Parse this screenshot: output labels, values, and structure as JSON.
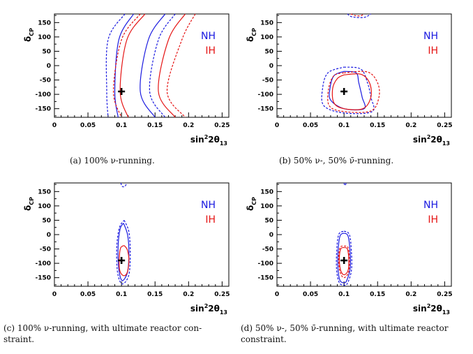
{
  "chart_data": [
    {
      "type": "line",
      "xlabel_html": "sin<sup>2</sup>2θ<sub>13</sub>",
      "ylabel": "δCP",
      "xlim": [
        0,
        0.26
      ],
      "ylim": [
        -180,
        180
      ],
      "x_ticks": [
        "0",
        "0.05",
        "0.1",
        "0.15",
        "0.2",
        "0.25"
      ],
      "y_ticks": [
        "-150",
        "-100",
        "-50",
        "0",
        "50",
        "100",
        "150"
      ],
      "legend": [
        "NH",
        "IH"
      ],
      "legend_position": "right",
      "true_point": {
        "x": 0.1,
        "y": -90
      },
      "caption": "(a) 100% ν-running.",
      "series": [
        {
          "hierarchy": "NH",
          "style": "solid",
          "points": [
            [
              0.118,
              180
            ],
            [
              0.096,
              90
            ],
            [
              0.09,
              -90
            ],
            [
              0.095,
              -180
            ]
          ]
        },
        {
          "hierarchy": "NH",
          "style": "solid",
          "points": [
            [
              0.165,
              180
            ],
            [
              0.14,
              90
            ],
            [
              0.128,
              -90
            ],
            [
              0.15,
              -180
            ]
          ]
        },
        {
          "hierarchy": "NH",
          "style": "dashed",
          "points": [
            [
              0.105,
              180
            ],
            [
              0.08,
              90
            ],
            [
              0.078,
              -90
            ],
            [
              0.08,
              -180
            ]
          ]
        },
        {
          "hierarchy": "NH",
          "style": "dashed",
          "points": [
            [
              0.18,
              180
            ],
            [
              0.155,
              90
            ],
            [
              0.142,
              -90
            ],
            [
              0.165,
              -180
            ]
          ]
        },
        {
          "hierarchy": "IH",
          "style": "solid",
          "points": [
            [
              0.135,
              180
            ],
            [
              0.108,
              90
            ],
            [
              0.098,
              -90
            ],
            [
              0.11,
              -180
            ]
          ]
        },
        {
          "hierarchy": "IH",
          "style": "solid",
          "points": [
            [
              0.195,
              180
            ],
            [
              0.17,
              90
            ],
            [
              0.155,
              -90
            ],
            [
              0.18,
              -180
            ]
          ]
        },
        {
          "hierarchy": "IH",
          "style": "dashed",
          "points": [
            [
              0.128,
              180
            ],
            [
              0.1,
              90
            ],
            [
              0.088,
              -90
            ],
            [
              0.1,
              -180
            ]
          ]
        },
        {
          "hierarchy": "IH",
          "style": "dashed",
          "points": [
            [
              0.21,
              180
            ],
            [
              0.19,
              90
            ],
            [
              0.168,
              -90
            ],
            [
              0.195,
              -180
            ]
          ]
        }
      ]
    },
    {
      "type": "line",
      "xlabel_html": "sin<sup>2</sup>2θ<sub>13</sub>",
      "ylabel": "δCP",
      "xlim": [
        0,
        0.26
      ],
      "ylim": [
        -180,
        180
      ],
      "x_ticks": [
        "0",
        "0.05",
        "0.1",
        "0.15",
        "0.2",
        "0.25"
      ],
      "y_ticks": [
        "-150",
        "-100",
        "-50",
        "0",
        "50",
        "100",
        "150"
      ],
      "legend": [
        "NH",
        "IH"
      ],
      "legend_position": "right",
      "true_point": {
        "x": 0.1,
        "y": -90
      },
      "caption": "(b) 50% ν-, 50% ν̄-running.",
      "series": [
        {
          "hierarchy": "NH",
          "style": "solid",
          "points": [
            [
              0.1,
              -20
            ],
            [
              0.118,
              -25
            ],
            [
              0.122,
              -60
            ],
            [
              0.127,
              -110
            ],
            [
              0.13,
              -150
            ],
            [
              0.1,
              -150
            ],
            [
              0.08,
              -120
            ],
            [
              0.079,
              -80
            ],
            [
              0.085,
              -35
            ],
            [
              0.1,
              -20
            ]
          ]
        },
        {
          "hierarchy": "NH",
          "style": "dashed",
          "points": [
            [
              0.1,
              -5
            ],
            [
              0.125,
              -12
            ],
            [
              0.135,
              -60
            ],
            [
              0.14,
              -110
            ],
            [
              0.142,
              -160
            ],
            [
              0.1,
              -165
            ],
            [
              0.07,
              -140
            ],
            [
              0.068,
              -80
            ],
            [
              0.076,
              -25
            ],
            [
              0.1,
              -5
            ]
          ]
        },
        {
          "hierarchy": "NH",
          "style": "dashed",
          "points": [
            [
              0.105,
              180
            ],
            [
              0.112,
              170
            ],
            [
              0.13,
              168
            ],
            [
              0.14,
              180
            ]
          ]
        },
        {
          "hierarchy": "IH",
          "style": "solid",
          "points": [
            [
              0.1,
              -32
            ],
            [
              0.125,
              -30
            ],
            [
              0.138,
              -60
            ],
            [
              0.14,
              -110
            ],
            [
              0.128,
              -150
            ],
            [
              0.1,
              -150
            ],
            [
              0.085,
              -130
            ],
            [
              0.083,
              -80
            ],
            [
              0.09,
              -45
            ],
            [
              0.1,
              -32
            ]
          ]
        },
        {
          "hierarchy": "IH",
          "style": "dashed",
          "points": [
            [
              0.1,
              -25
            ],
            [
              0.135,
              -22
            ],
            [
              0.15,
              -60
            ],
            [
              0.152,
              -110
            ],
            [
              0.14,
              -158
            ],
            [
              0.1,
              -160
            ],
            [
              0.078,
              -140
            ],
            [
              0.077,
              -80
            ],
            [
              0.085,
              -35
            ],
            [
              0.1,
              -25
            ]
          ]
        },
        {
          "hierarchy": "IH",
          "style": "dashed",
          "points": [
            [
              0.11,
              180
            ],
            [
              0.118,
              174
            ],
            [
              0.125,
              174
            ],
            [
              0.13,
              180
            ]
          ]
        }
      ]
    },
    {
      "type": "line",
      "xlabel_html": "sin<sup>2</sup>2θ<sub>13</sub>",
      "ylabel": "δCP",
      "xlim": [
        0,
        0.26
      ],
      "ylim": [
        -180,
        180
      ],
      "x_ticks": [
        "0",
        "0.05",
        "0.1",
        "0.15",
        "0.2",
        "0.25"
      ],
      "y_ticks": [
        "-150",
        "-100",
        "-50",
        "0",
        "50",
        "100",
        "150"
      ],
      "legend": [
        "NH",
        "IH"
      ],
      "legend_position": "right",
      "true_point": {
        "x": 0.1,
        "y": -90
      },
      "caption": "(c) 100% ν-running, with ultimate reactor con- straint.",
      "series": [
        {
          "hierarchy": "NH",
          "style": "solid",
          "points": [
            [
              0.103,
              40
            ],
            [
              0.109,
              0
            ],
            [
              0.111,
              -60
            ],
            [
              0.109,
              -130
            ],
            [
              0.101,
              -160
            ],
            [
              0.096,
              -120
            ],
            [
              0.095,
              -40
            ],
            [
              0.098,
              20
            ],
            [
              0.103,
              40
            ]
          ]
        },
        {
          "hierarchy": "NH",
          "style": "dashed",
          "points": [
            [
              0.104,
              50
            ],
            [
              0.111,
              10
            ],
            [
              0.113,
              -60
            ],
            [
              0.111,
              -140
            ],
            [
              0.101,
              -172
            ],
            [
              0.094,
              -130
            ],
            [
              0.093,
              -40
            ],
            [
              0.097,
              25
            ],
            [
              0.104,
              50
            ]
          ]
        },
        {
          "hierarchy": "NH",
          "style": "dashed",
          "points": [
            [
              0.099,
              180
            ],
            [
              0.101,
              168
            ],
            [
              0.105,
              168
            ],
            [
              0.108,
              180
            ]
          ]
        },
        {
          "hierarchy": "IH",
          "style": "solid",
          "points": [
            [
              0.104,
              -38
            ],
            [
              0.109,
              -55
            ],
            [
              0.111,
              -95
            ],
            [
              0.108,
              -135
            ],
            [
              0.102,
              -142
            ],
            [
              0.097,
              -120
            ],
            [
              0.097,
              -70
            ],
            [
              0.099,
              -45
            ],
            [
              0.104,
              -38
            ]
          ]
        }
      ]
    },
    {
      "type": "line",
      "xlabel_html": "sin<sup>2</sup>2θ<sub>13</sub>",
      "ylabel": "δCP",
      "xlim": [
        0,
        0.26
      ],
      "ylim": [
        -180,
        180
      ],
      "x_ticks": [
        "0",
        "0.05",
        "0.1",
        "0.15",
        "0.2",
        "0.25"
      ],
      "y_ticks": [
        "-150",
        "-100",
        "-50",
        "0",
        "50",
        "100",
        "150"
      ],
      "legend": [
        "NH",
        "IH"
      ],
      "legend_position": "right",
      "true_point": {
        "x": 0.1,
        "y": -90
      },
      "caption": "(d) 50% ν-, 50% ν̄-running, with ultimate reactor constraint.",
      "series": [
        {
          "hierarchy": "NH",
          "style": "solid",
          "points": [
            [
              0.1,
              5
            ],
            [
              0.106,
              -5
            ],
            [
              0.109,
              -60
            ],
            [
              0.109,
              -120
            ],
            [
              0.104,
              -160
            ],
            [
              0.1,
              -168
            ],
            [
              0.094,
              -160
            ],
            [
              0.091,
              -120
            ],
            [
              0.091,
              -60
            ],
            [
              0.094,
              -5
            ],
            [
              0.1,
              5
            ]
          ]
        },
        {
          "hierarchy": "NH",
          "style": "dashed",
          "points": [
            [
              0.1,
              12
            ],
            [
              0.108,
              0
            ],
            [
              0.111,
              -60
            ],
            [
              0.111,
              -125
            ],
            [
              0.105,
              -170
            ],
            [
              0.1,
              -176
            ],
            [
              0.093,
              -168
            ],
            [
              0.089,
              -125
            ],
            [
              0.089,
              -60
            ],
            [
              0.092,
              0
            ],
            [
              0.1,
              12
            ]
          ]
        },
        {
          "hierarchy": "NH",
          "style": "dashed",
          "points": [
            [
              0.1,
              180
            ],
            [
              0.101,
              172
            ],
            [
              0.102,
              172
            ],
            [
              0.103,
              180
            ]
          ]
        },
        {
          "hierarchy": "IH",
          "style": "solid",
          "points": [
            [
              0.1,
              -45
            ],
            [
              0.105,
              -50
            ],
            [
              0.107,
              -85
            ],
            [
              0.106,
              -125
            ],
            [
              0.1,
              -140
            ],
            [
              0.095,
              -125
            ],
            [
              0.093,
              -85
            ],
            [
              0.095,
              -50
            ],
            [
              0.1,
              -45
            ]
          ]
        },
        {
          "hierarchy": "IH",
          "style": "dashed",
          "points": [
            [
              0.1,
              -40
            ],
            [
              0.106,
              -45
            ],
            [
              0.108,
              -85
            ],
            [
              0.107,
              -130
            ],
            [
              0.1,
              -150
            ],
            [
              0.094,
              -130
            ],
            [
              0.092,
              -85
            ],
            [
              0.094,
              -45
            ],
            [
              0.1,
              -40
            ]
          ]
        }
      ]
    }
  ],
  "colors": {
    "NH": "#1a1ae0",
    "IH": "#e51414",
    "axis": "#000000"
  }
}
